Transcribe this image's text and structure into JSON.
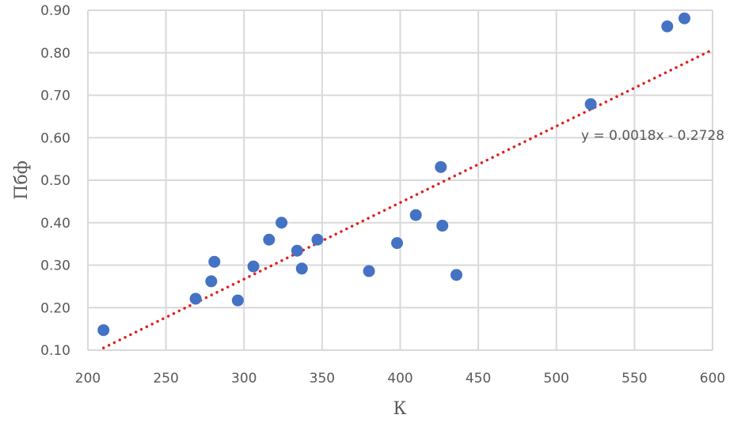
{
  "chart_data": {
    "type": "scatter",
    "title": "",
    "xlabel": "К",
    "ylabel": "Пбф",
    "xlim": [
      200,
      600
    ],
    "ylim": [
      0.1,
      0.9
    ],
    "x_ticks": [
      200,
      250,
      300,
      350,
      400,
      450,
      500,
      550,
      600
    ],
    "y_ticks": [
      0.1,
      0.2,
      0.3,
      0.4,
      0.5,
      0.6,
      0.7,
      0.8,
      0.9
    ],
    "x_tick_labels": [
      "200",
      "250",
      "300",
      "350",
      "400",
      "450",
      "500",
      "550",
      "600"
    ],
    "y_tick_labels": [
      "0.10",
      "0.20",
      "0.30",
      "0.40",
      "0.50",
      "0.60",
      "0.70",
      "0.80",
      "0.90"
    ],
    "grid": true,
    "legend": null,
    "series": [
      {
        "name": "data",
        "color": "#4472C4",
        "points": [
          [
            210,
            0.147
          ],
          [
            269,
            0.221
          ],
          [
            279,
            0.262
          ],
          [
            281,
            0.308
          ],
          [
            296,
            0.217
          ],
          [
            306,
            0.297
          ],
          [
            316,
            0.36
          ],
          [
            324,
            0.4
          ],
          [
            334,
            0.334
          ],
          [
            337,
            0.292
          ],
          [
            347,
            0.36
          ],
          [
            380,
            0.286
          ],
          [
            398,
            0.352
          ],
          [
            410,
            0.418
          ],
          [
            426,
            0.531
          ],
          [
            427,
            0.393
          ],
          [
            436,
            0.277
          ],
          [
            522,
            0.679
          ],
          [
            571,
            0.862
          ],
          [
            582,
            0.881
          ]
        ]
      }
    ],
    "trendline": {
      "type": "linear",
      "slope": 0.0018,
      "intercept": -0.2728,
      "x_range": [
        210,
        600
      ],
      "color": "#E02020",
      "style": "dotted",
      "equation_label": "y = 0.0018x - 0.2728"
    }
  },
  "colors": {
    "grid": "#D9D9D9",
    "text": "#595959",
    "point": "#4472C4",
    "trend": "#E02020"
  }
}
